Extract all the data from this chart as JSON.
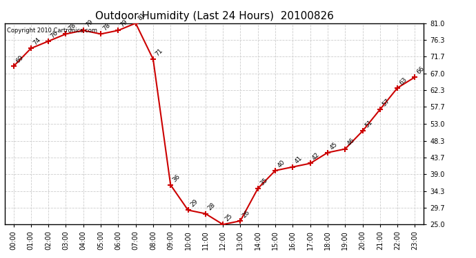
{
  "title": "Outdoor Humidity (Last 24 Hours)  20100826",
  "copyright_text": "Copyright 2010 Cartronics.com",
  "x_labels": [
    "00:00",
    "01:00",
    "02:00",
    "03:00",
    "04:00",
    "05:00",
    "06:00",
    "07:00",
    "08:00",
    "09:00",
    "10:00",
    "11:00",
    "12:00",
    "13:00",
    "14:00",
    "15:00",
    "16:00",
    "17:00",
    "18:00",
    "19:00",
    "20:00",
    "21:00",
    "22:00",
    "23:00"
  ],
  "x_values": [
    0,
    1,
    2,
    3,
    4,
    5,
    6,
    7,
    8,
    9,
    10,
    11,
    12,
    13,
    14,
    15,
    16,
    17,
    18,
    19,
    20,
    21,
    22,
    23
  ],
  "y_values": [
    69,
    74,
    76,
    78,
    79,
    78,
    79,
    81,
    71,
    36,
    29,
    28,
    25,
    26,
    35,
    40,
    41,
    42,
    45,
    46,
    51,
    57,
    63,
    66
  ],
  "ylim_min": 25.0,
  "ylim_max": 81.0,
  "yticks": [
    25.0,
    29.7,
    34.3,
    39.0,
    43.7,
    48.3,
    53.0,
    57.7,
    62.3,
    67.0,
    71.7,
    76.3,
    81.0
  ],
  "line_color": "#cc0000",
  "marker_color": "#cc0000",
  "background_color": "#ffffff",
  "grid_color": "#cccccc",
  "title_fontsize": 11,
  "annotation_fontsize": 6.5,
  "tick_fontsize": 7,
  "copyright_fontsize": 6
}
